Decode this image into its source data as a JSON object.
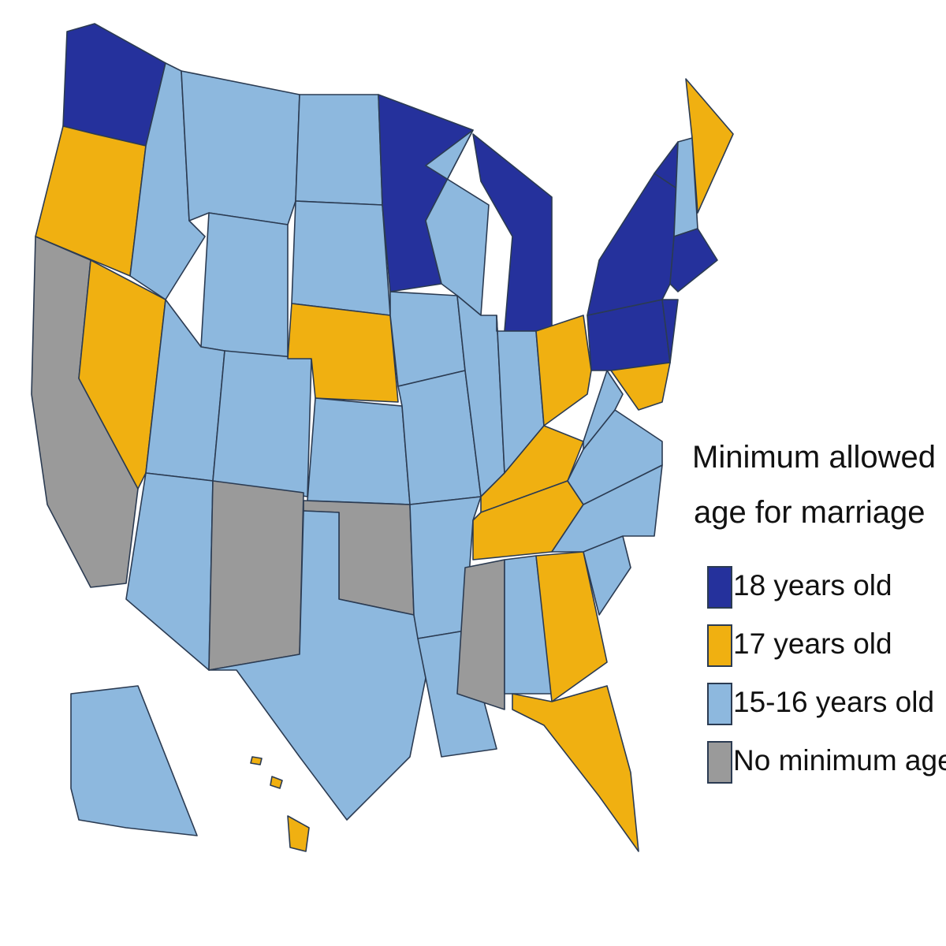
{
  "legend": {
    "title": [
      "Minimum allowed",
      "age for marriage"
    ],
    "items": [
      {
        "label": "18 years old",
        "color": "#25319c"
      },
      {
        "label": "17 years old",
        "color": "#f0b011"
      },
      {
        "label": "15-16 years old",
        "color": "#8db8de"
      },
      {
        "label": "No minimum age",
        "color": "#9a9a9a"
      }
    ]
  }
}
